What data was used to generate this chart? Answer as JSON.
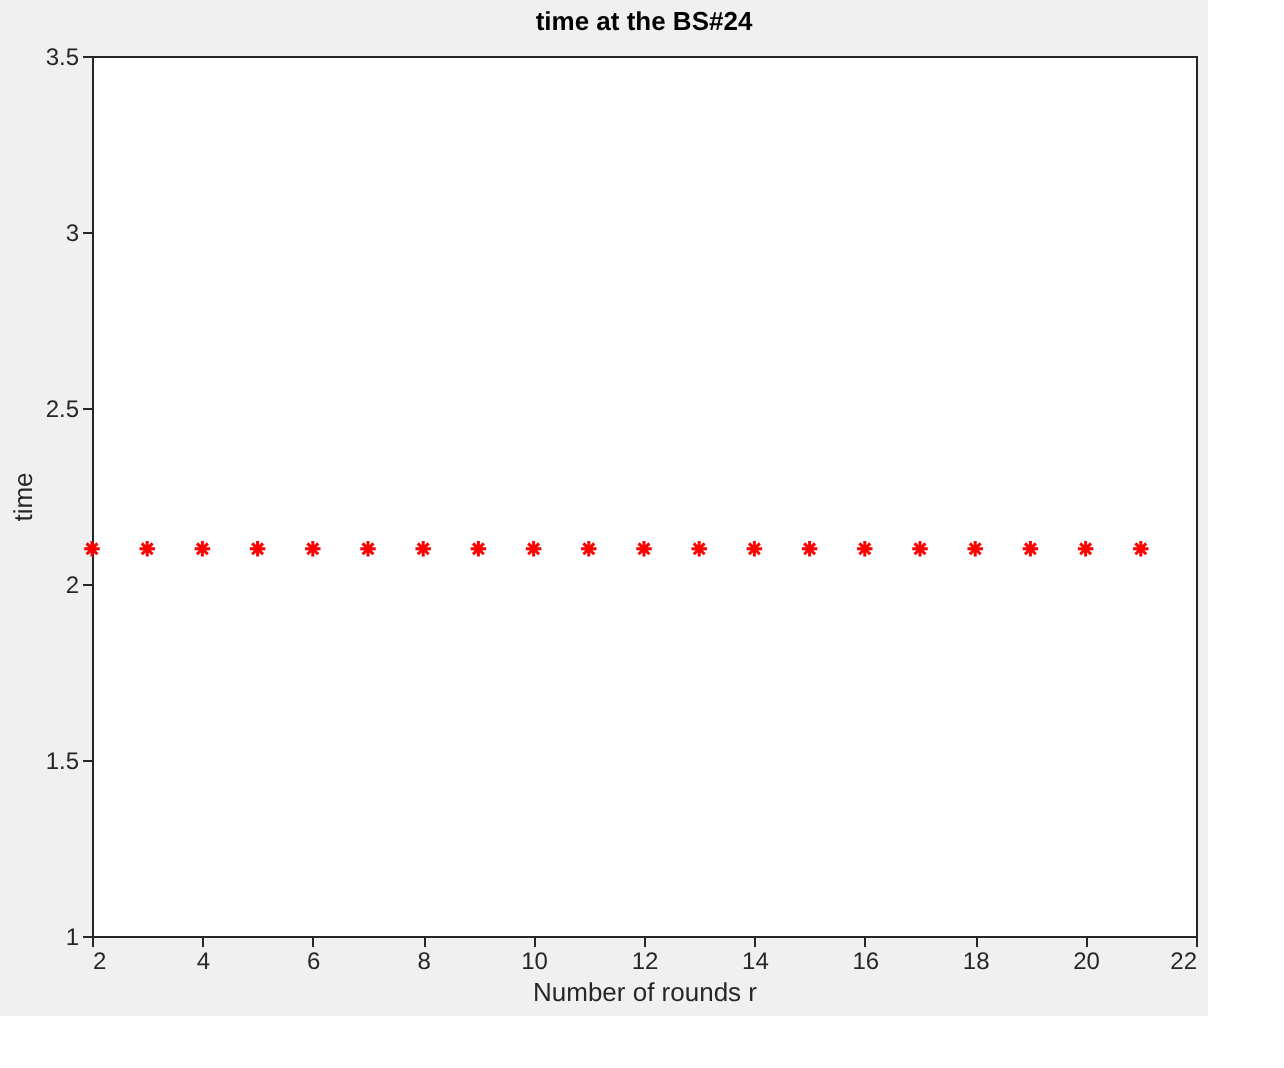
{
  "chart_data": {
    "type": "scatter",
    "title": "time at the BS#24",
    "xlabel": "Number of rounds r",
    "ylabel": "time",
    "x": [
      2,
      3,
      4,
      5,
      6,
      7,
      8,
      9,
      10,
      11,
      12,
      13,
      14,
      15,
      16,
      17,
      18,
      19,
      20,
      21
    ],
    "series": [
      {
        "color": "#ff0000",
        "values": [
          2.1,
          2.1,
          2.1,
          2.1,
          2.1,
          2.1,
          2.1,
          2.1,
          2.1,
          2.1,
          2.1,
          2.1,
          2.1,
          2.1,
          2.1,
          2.1,
          2.1,
          2.1,
          2.1,
          2.1
        ]
      }
    ],
    "xlim": [
      2,
      22
    ],
    "xticks": [
      2,
      4,
      6,
      8,
      10,
      12,
      14,
      16,
      18,
      20,
      22
    ],
    "ylim": [
      1,
      3.5
    ],
    "yticks": [
      1,
      1.5,
      2,
      2.5,
      3,
      3.5
    ],
    "marker": "cross",
    "grid": false
  }
}
